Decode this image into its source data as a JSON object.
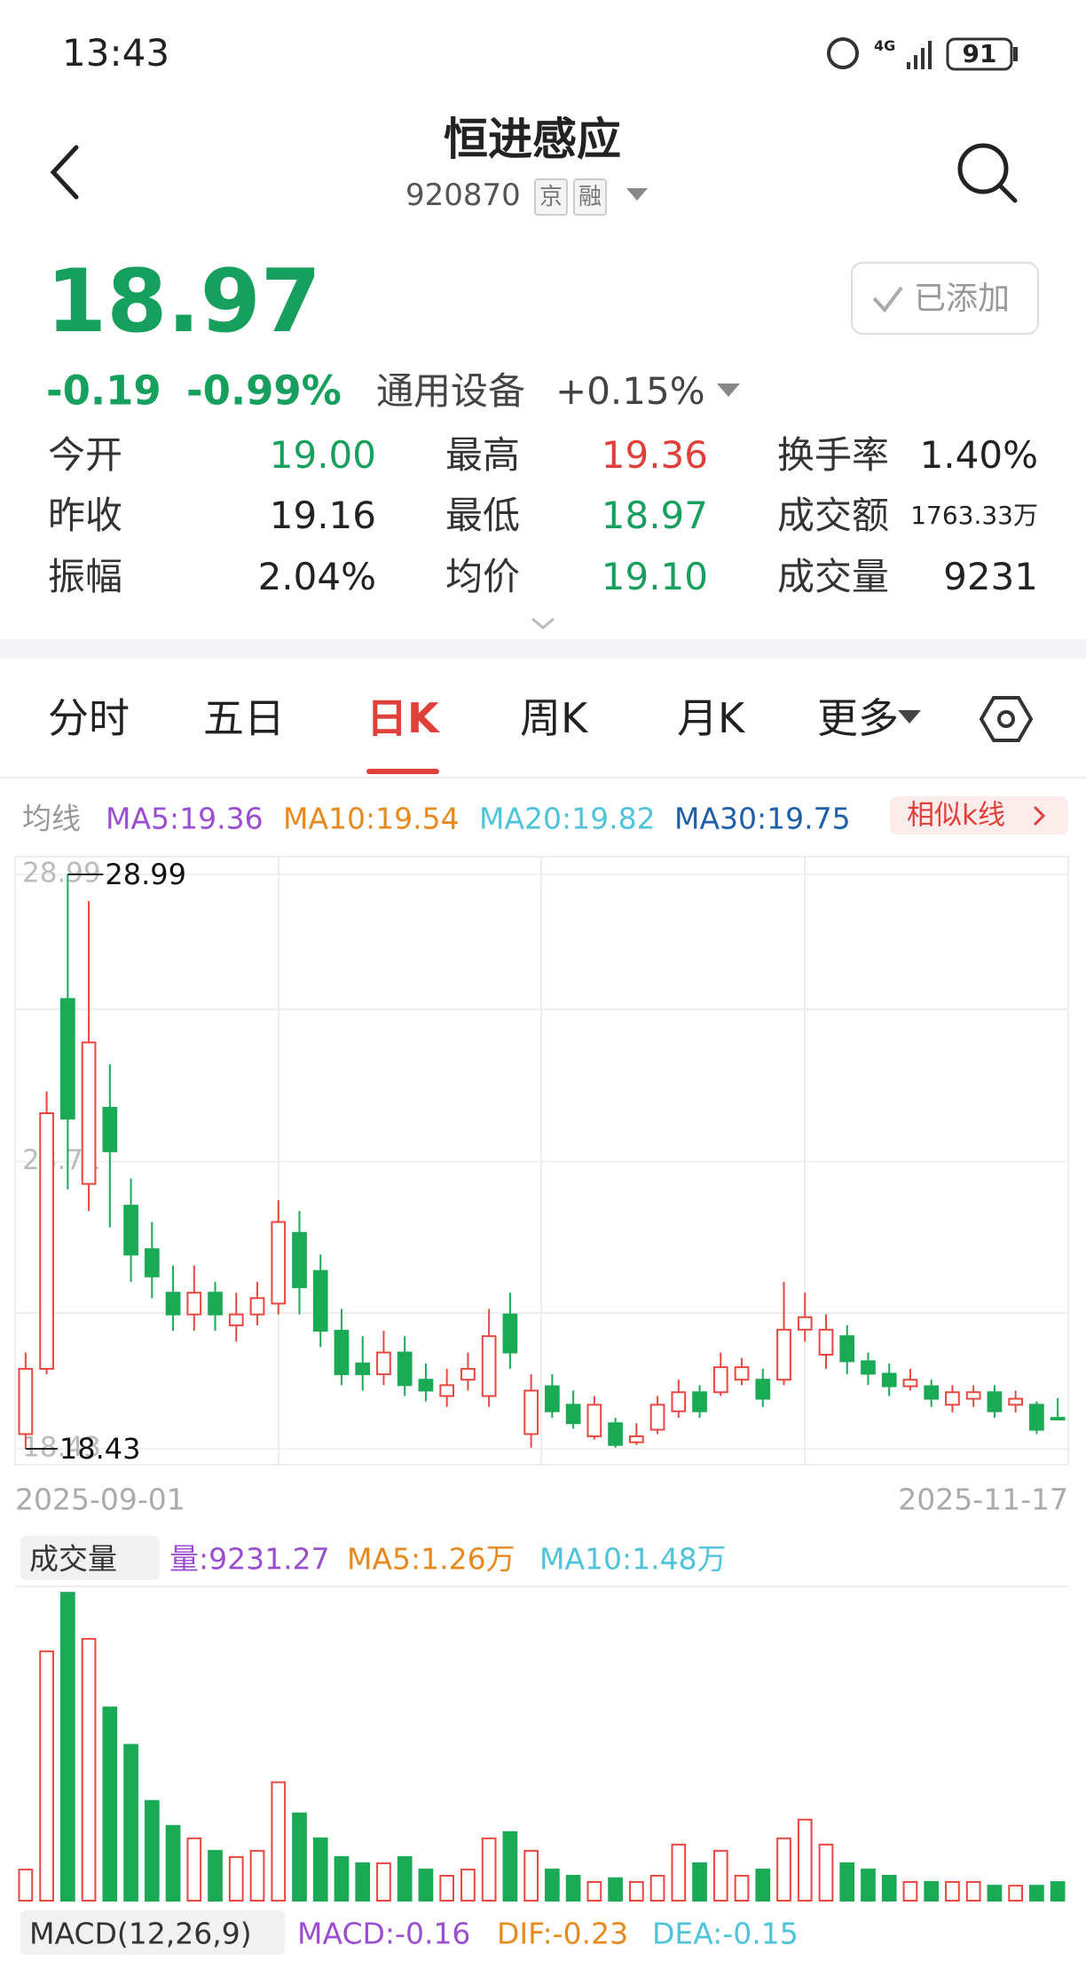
{
  "status_bar": {
    "time": "13:43",
    "network": "4G",
    "battery": "91"
  },
  "header": {
    "title": "恒进感应",
    "code": "920870",
    "tags": [
      "京",
      "融"
    ]
  },
  "quote": {
    "price": "18.97",
    "change": "-0.19",
    "change_pct": "-0.99%",
    "sector": "通用设备",
    "sector_change": "+0.15%",
    "watch_button": "已添加"
  },
  "stats": [
    {
      "label": "今开",
      "value": "19.00",
      "color": "#17a05d"
    },
    {
      "label": "最高",
      "value": "19.36",
      "color": "#e0403a"
    },
    {
      "label": "换手率",
      "value": "1.40%",
      "color": "#222222"
    },
    {
      "label": "昨收",
      "value": "19.16",
      "color": "#222222"
    },
    {
      "label": "最低",
      "value": "18.97",
      "color": "#17a05d"
    },
    {
      "label": "成交额",
      "value": "1763.33万",
      "color": "#222222"
    },
    {
      "label": "振幅",
      "value": "2.04%",
      "color": "#222222"
    },
    {
      "label": "均价",
      "value": "19.10",
      "color": "#17a05d"
    },
    {
      "label": "成交量",
      "value": "9231",
      "color": "#222222"
    }
  ],
  "tabs": [
    "分时",
    "五日",
    "日K",
    "周K",
    "月K",
    "更多"
  ],
  "active_tab": 2,
  "ma_legend": {
    "label": "均线",
    "items": [
      {
        "text": "MA5:19.36",
        "color": "#9b4fd0"
      },
      {
        "text": "MA10:19.54",
        "color": "#e8891d"
      },
      {
        "text": "MA20:19.82",
        "color": "#4fc3d9"
      },
      {
        "text": "MA30:19.75",
        "color": "#1d5fa8"
      }
    ],
    "similar_button": "相似k线"
  },
  "chart_data": {
    "type": "candlestick",
    "ylim": [
      18.43,
      28.99
    ],
    "yticks": [
      18.43,
      23.71,
      28.99
    ],
    "high_label": "28.99",
    "low_label": "18.43",
    "x_start": "2025-09-01",
    "x_end": "2025-11-17",
    "up_color": "#e8473f",
    "down_color": "#1aaa55",
    "candles": [
      {
        "open": 18.7,
        "close": 19.9,
        "high": 20.2,
        "low": 18.43
      },
      {
        "open": 19.9,
        "close": 24.6,
        "high": 25.0,
        "low": 19.8
      },
      {
        "open": 26.7,
        "close": 24.5,
        "high": 28.99,
        "low": 23.2
      },
      {
        "open": 23.3,
        "close": 25.9,
        "high": 28.5,
        "low": 22.8
      },
      {
        "open": 24.7,
        "close": 23.9,
        "high": 25.5,
        "low": 22.5
      },
      {
        "open": 22.9,
        "close": 22.0,
        "high": 23.4,
        "low": 21.5
      },
      {
        "open": 22.1,
        "close": 21.6,
        "high": 22.6,
        "low": 21.2
      },
      {
        "open": 21.3,
        "close": 20.9,
        "high": 21.8,
        "low": 20.6
      },
      {
        "open": 20.9,
        "close": 21.3,
        "high": 21.8,
        "low": 20.6
      },
      {
        "open": 21.3,
        "close": 20.9,
        "high": 21.5,
        "low": 20.6
      },
      {
        "open": 20.7,
        "close": 20.9,
        "high": 21.3,
        "low": 20.4
      },
      {
        "open": 20.9,
        "close": 21.2,
        "high": 21.5,
        "low": 20.7
      },
      {
        "open": 21.1,
        "close": 22.6,
        "high": 23.0,
        "low": 20.9
      },
      {
        "open": 22.4,
        "close": 21.4,
        "high": 22.8,
        "low": 20.9
      },
      {
        "open": 21.7,
        "close": 20.6,
        "high": 22.0,
        "low": 20.3
      },
      {
        "open": 20.6,
        "close": 19.8,
        "high": 21.0,
        "low": 19.6
      },
      {
        "open": 20.0,
        "close": 19.8,
        "high": 20.5,
        "low": 19.5
      },
      {
        "open": 19.8,
        "close": 20.2,
        "high": 20.6,
        "low": 19.6
      },
      {
        "open": 20.2,
        "close": 19.6,
        "high": 20.5,
        "low": 19.4
      },
      {
        "open": 19.7,
        "close": 19.5,
        "high": 20.0,
        "low": 19.3
      },
      {
        "open": 19.4,
        "close": 19.6,
        "high": 19.9,
        "low": 19.2
      },
      {
        "open": 19.7,
        "close": 19.9,
        "high": 20.2,
        "low": 19.5
      },
      {
        "open": 19.4,
        "close": 20.5,
        "high": 21.0,
        "low": 19.2
      },
      {
        "open": 20.9,
        "close": 20.2,
        "high": 21.3,
        "low": 19.9
      },
      {
        "open": 18.7,
        "close": 19.5,
        "high": 19.8,
        "low": 18.45
      },
      {
        "open": 19.58,
        "close": 19.12,
        "high": 19.8,
        "low": 19.0
      },
      {
        "open": 19.24,
        "close": 18.9,
        "high": 19.5,
        "low": 18.8
      },
      {
        "open": 18.66,
        "close": 19.24,
        "high": 19.4,
        "low": 18.6
      },
      {
        "open": 18.9,
        "close": 18.5,
        "high": 19.0,
        "low": 18.45
      },
      {
        "open": 18.55,
        "close": 18.66,
        "high": 18.9,
        "low": 18.5
      },
      {
        "open": 18.78,
        "close": 19.24,
        "high": 19.4,
        "low": 18.7
      },
      {
        "open": 19.12,
        "close": 19.47,
        "high": 19.7,
        "low": 19.0
      },
      {
        "open": 19.47,
        "close": 19.12,
        "high": 19.6,
        "low": 19.0
      },
      {
        "open": 19.47,
        "close": 19.93,
        "high": 20.2,
        "low": 19.4
      },
      {
        "open": 19.7,
        "close": 19.93,
        "high": 20.1,
        "low": 19.6
      },
      {
        "open": 19.7,
        "close": 19.35,
        "high": 19.9,
        "low": 19.2
      },
      {
        "open": 19.7,
        "close": 20.62,
        "high": 21.5,
        "low": 19.6
      },
      {
        "open": 20.62,
        "close": 20.85,
        "high": 21.3,
        "low": 20.4
      },
      {
        "open": 20.16,
        "close": 20.62,
        "high": 20.9,
        "low": 19.9
      },
      {
        "open": 20.5,
        "close": 20.04,
        "high": 20.7,
        "low": 19.8
      },
      {
        "open": 20.04,
        "close": 19.81,
        "high": 20.2,
        "low": 19.6
      },
      {
        "open": 19.81,
        "close": 19.58,
        "high": 20.0,
        "low": 19.4
      },
      {
        "open": 19.58,
        "close": 19.7,
        "high": 19.9,
        "low": 19.5
      },
      {
        "open": 19.58,
        "close": 19.35,
        "high": 19.7,
        "low": 19.2
      },
      {
        "open": 19.24,
        "close": 19.47,
        "high": 19.6,
        "low": 19.1
      },
      {
        "open": 19.35,
        "close": 19.47,
        "high": 19.6,
        "low": 19.2
      },
      {
        "open": 19.47,
        "close": 19.12,
        "high": 19.6,
        "low": 19.0
      },
      {
        "open": 19.24,
        "close": 19.35,
        "high": 19.5,
        "low": 19.1
      },
      {
        "open": 19.24,
        "close": 18.78,
        "high": 19.3,
        "low": 18.7
      },
      {
        "open": 19.0,
        "close": 18.97,
        "high": 19.36,
        "low": 18.97
      }
    ],
    "volume": {
      "selector": "成交量",
      "legend": [
        {
          "text": "量:9231.27",
          "color": "#9b4fd0"
        },
        {
          "text": "MA5:1.26万",
          "color": "#e8891d"
        },
        {
          "text": "MA10:1.48万",
          "color": "#4fc3d9"
        }
      ],
      "ylim": [
        0,
        155000
      ],
      "values": [
        15500,
        124000,
        153140,
        130200,
        96100,
        77500,
        49600,
        37200,
        31000,
        24800,
        21700,
        24800,
        58900,
        43400,
        31000,
        21700,
        18600,
        18600,
        21700,
        15500,
        12400,
        15500,
        31000,
        34100,
        24800,
        15500,
        12400,
        9300,
        11160,
        9300,
        12400,
        27900,
        18600,
        24800,
        12400,
        15500,
        31000,
        40300,
        27900,
        18600,
        15500,
        12400,
        9300,
        9300,
        9300,
        9300,
        7440,
        7440,
        7440,
        9231
      ]
    },
    "macd": {
      "selector": "MACD(12,26,9)",
      "legend": [
        {
          "text": "MACD:-0.16",
          "color": "#9b4fd0"
        },
        {
          "text": "DIF:-0.23",
          "color": "#e8891d"
        },
        {
          "text": "DEA:-0.15",
          "color": "#4fc3d9"
        }
      ]
    }
  }
}
